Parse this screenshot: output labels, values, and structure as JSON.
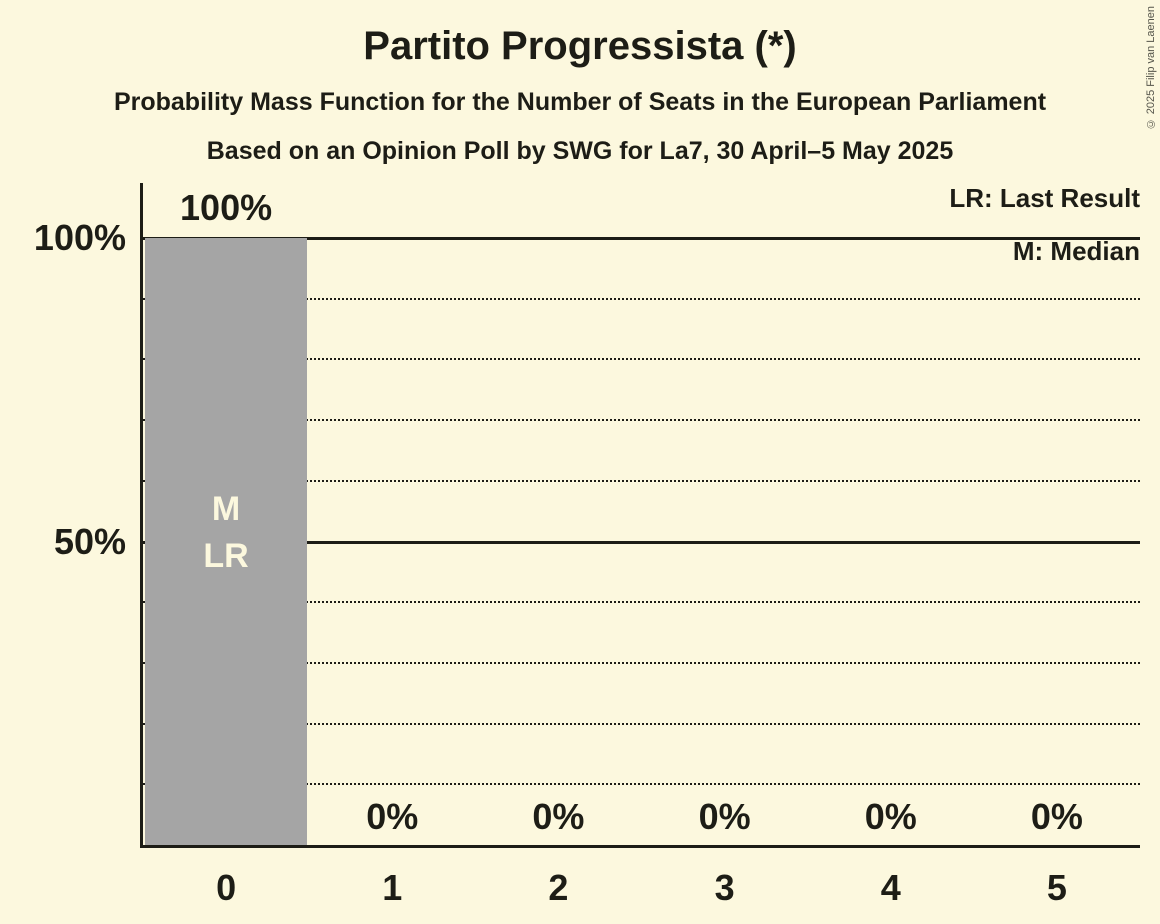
{
  "copyright": "© 2025 Filip van Laenen",
  "colors": {
    "background": "#FCF8DE",
    "bar": "#A5A5A5",
    "text": "#1D1D16",
    "bar_annotation_text": "#FCF8DE",
    "copyright_text": "#55554B"
  },
  "chart_data": {
    "type": "bar",
    "title": "Partito Progressista (*)",
    "subtitle": "Probability Mass Function for the Number of Seats in the European Parliament",
    "sub_subtitle": "Based on an Opinion Poll by SWG for La7, 30 April–5 May 2025",
    "categories": [
      "0",
      "1",
      "2",
      "3",
      "4",
      "5"
    ],
    "values": [
      100,
      0,
      0,
      0,
      0,
      0
    ],
    "value_labels": [
      "100%",
      "0%",
      "0%",
      "0%",
      "0%",
      "0%"
    ],
    "bar_annotations": [
      [
        "M",
        "LR"
      ],
      [],
      [],
      [],
      [],
      []
    ],
    "xlabel": "",
    "ylabel": "",
    "ylim": [
      0,
      100
    ],
    "y_ticks": [
      {
        "value": 100,
        "label": "100%"
      },
      {
        "value": 50,
        "label": "50%"
      }
    ],
    "gridlines": [
      {
        "value": 100,
        "style": "solid"
      },
      {
        "value": 90,
        "style": "dotted"
      },
      {
        "value": 80,
        "style": "dotted"
      },
      {
        "value": 70,
        "style": "dotted"
      },
      {
        "value": 60,
        "style": "dotted"
      },
      {
        "value": 50,
        "style": "solid"
      },
      {
        "value": 40,
        "style": "dotted"
      },
      {
        "value": 30,
        "style": "dotted"
      },
      {
        "value": 20,
        "style": "dotted"
      },
      {
        "value": 10,
        "style": "dotted"
      }
    ],
    "legend": [
      "LR: Last Result",
      "M: Median"
    ],
    "legend_position": "top-right",
    "grid": true
  }
}
